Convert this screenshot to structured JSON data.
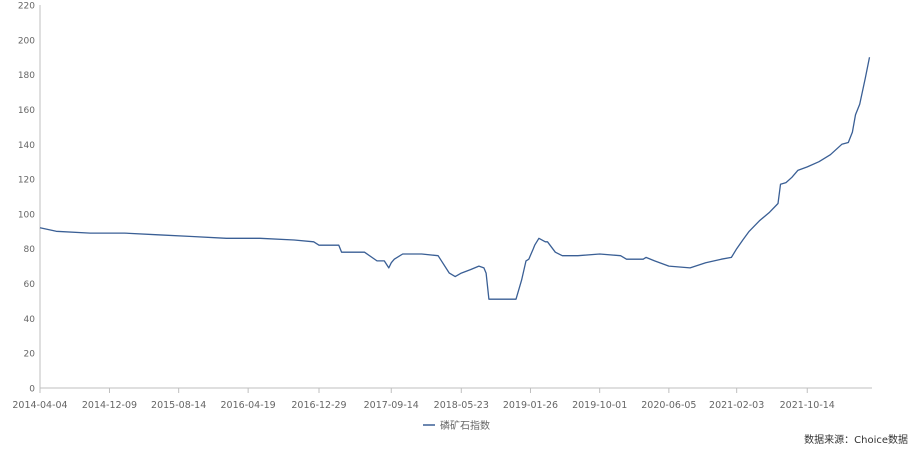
{
  "chart_data": {
    "type": "line",
    "title": "",
    "xlabel": "",
    "ylabel": "",
    "ylim": [
      0,
      220
    ],
    "yticks": [
      0,
      20,
      40,
      60,
      80,
      100,
      120,
      140,
      160,
      180,
      200,
      220
    ],
    "xticks": [
      "2014-04-04",
      "2014-12-09",
      "2015-08-14",
      "2016-04-19",
      "2016-12-29",
      "2017-09-14",
      "2018-05-23",
      "2019-01-26",
      "2019-10-01",
      "2020-06-05",
      "2021-02-03",
      "2021-10-14"
    ],
    "grid": false,
    "legend_position": "bottom",
    "series": [
      {
        "name": "磷矿石指数",
        "color": "#3a5f95",
        "x": [
          "2014-04-04",
          "2014-06-01",
          "2014-10-01",
          "2015-02-01",
          "2015-06-01",
          "2015-10-01",
          "2016-02-01",
          "2016-06-01",
          "2016-10-01",
          "2016-12-10",
          "2016-12-29",
          "2017-03-10",
          "2017-03-20",
          "2017-06-10",
          "2017-07-25",
          "2017-08-20",
          "2017-09-05",
          "2017-09-14",
          "2017-09-25",
          "2017-10-25",
          "2018-01-01",
          "2018-03-01",
          "2018-04-10",
          "2018-05-01",
          "2018-05-23",
          "2018-06-25",
          "2018-07-25",
          "2018-08-12",
          "2018-08-20",
          "2018-08-30",
          "2018-09-05",
          "2018-11-10",
          "2018-12-05",
          "2018-12-25",
          "2019-01-10",
          "2019-01-20",
          "2019-02-05",
          "2019-02-10",
          "2019-02-25",
          "2019-03-20",
          "2019-03-28",
          "2019-04-25",
          "2019-05-20",
          "2019-07-15",
          "2019-10-01",
          "2019-12-15",
          "2020-01-05",
          "2020-03-05",
          "2020-03-15",
          "2020-04-15",
          "2020-06-05",
          "2020-08-20",
          "2020-10-15",
          "2020-12-10",
          "2021-01-15",
          "2021-02-03",
          "2021-02-25",
          "2021-03-20",
          "2021-04-25",
          "2021-06-01",
          "2021-07-01",
          "2021-07-10",
          "2021-07-30",
          "2021-08-20",
          "2021-09-10",
          "2021-10-14",
          "2021-11-25",
          "2022-01-05",
          "2022-02-15",
          "2022-03-10",
          "2022-03-25",
          "2022-04-05",
          "2022-04-20",
          "2022-05-10",
          "2022-05-25"
        ],
        "y": [
          92,
          90,
          89,
          89,
          88,
          87,
          86,
          86,
          85,
          84,
          82,
          82,
          78,
          78,
          73,
          73,
          69,
          72,
          74,
          77,
          77,
          76,
          66,
          64,
          66,
          68,
          70,
          69,
          66,
          51,
          51,
          51,
          51,
          62,
          73,
          74,
          80,
          82,
          86,
          84,
          84,
          78,
          76,
          76,
          77,
          76,
          74,
          74,
          75,
          73,
          70,
          69,
          72,
          74,
          75,
          80,
          85,
          90,
          96,
          101,
          106,
          117,
          118,
          121,
          125,
          127,
          130,
          134,
          140,
          141,
          147,
          157,
          163,
          178,
          190
        ]
      }
    ]
  },
  "source_text": "数据来源：Choice数据"
}
